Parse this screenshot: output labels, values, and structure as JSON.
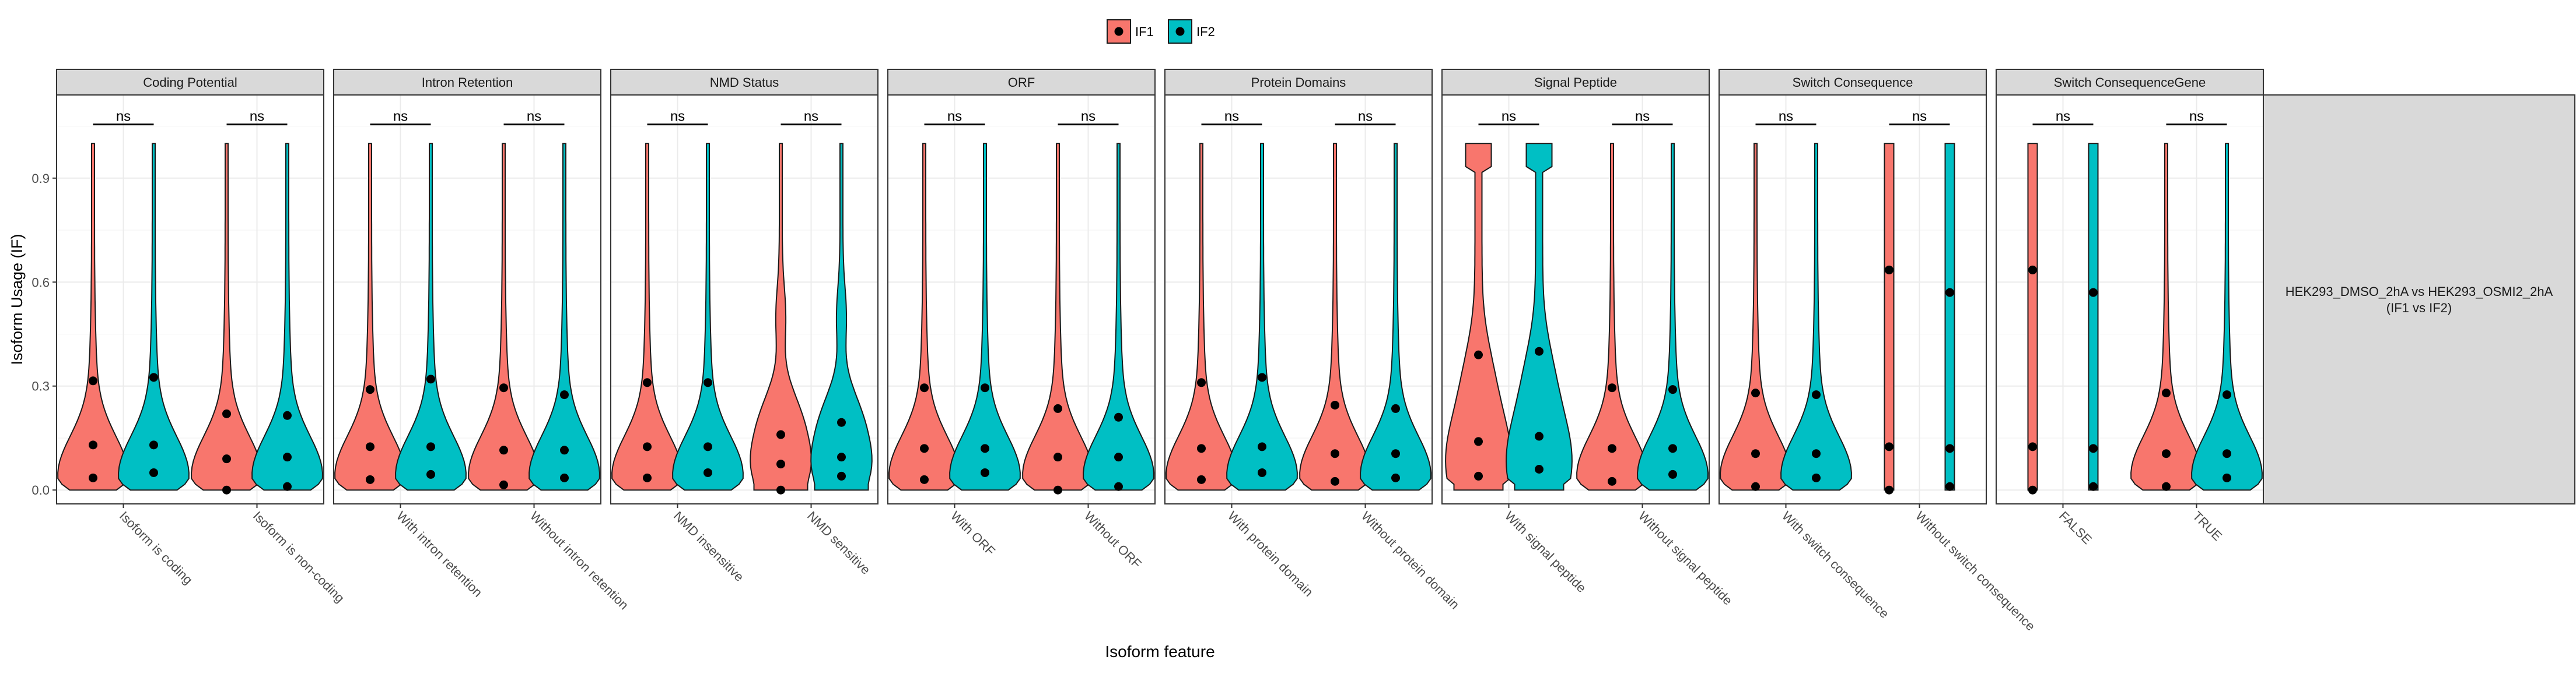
{
  "chart_data": {
    "type": "violin",
    "xlabel": "Isoform feature",
    "ylabel": "Isoform Usage (IF)",
    "ylim": [
      -0.04,
      1.14
    ],
    "yticks": [
      0.0,
      0.3,
      0.6,
      0.9
    ],
    "ytick_labels": [
      "0.0",
      "0.3",
      "0.6",
      "0.9"
    ],
    "grid": true,
    "legend": {
      "position": "top",
      "entries": [
        {
          "name": "IF1",
          "color": "#F8766D"
        },
        {
          "name": "IF2",
          "color": "#00BFC4"
        }
      ]
    },
    "strip_right": {
      "line1": "HEK293_DMSO_2hA vs HEK293_OSMI2_2hA",
      "line2": "(IF1 vs IF2)"
    },
    "significance_label": "ns",
    "facets": [
      {
        "title": "Coding Potential",
        "categories": [
          {
            "label": "Isoform is coding",
            "sig": "ns",
            "IF1": {
              "shape": "tail",
              "q": [
                0.035,
                0.13,
                0.315
              ]
            },
            "IF2": {
              "shape": "tail",
              "q": [
                0.05,
                0.13,
                0.325
              ]
            }
          },
          {
            "label": "Isoform is non-coding",
            "sig": "ns",
            "IF1": {
              "shape": "tail",
              "q": [
                0.0,
                0.09,
                0.22
              ]
            },
            "IF2": {
              "shape": "tail",
              "q": [
                0.01,
                0.095,
                0.215
              ]
            }
          }
        ]
      },
      {
        "title": "Intron Retention",
        "categories": [
          {
            "label": "With intron retention",
            "sig": "ns",
            "IF1": {
              "shape": "tail",
              "q": [
                0.03,
                0.125,
                0.29
              ]
            },
            "IF2": {
              "shape": "tail",
              "q": [
                0.045,
                0.125,
                0.32
              ]
            }
          },
          {
            "label": "Without intron retention",
            "sig": "ns",
            "IF1": {
              "shape": "tail",
              "q": [
                0.015,
                0.115,
                0.295
              ]
            },
            "IF2": {
              "shape": "tail",
              "q": [
                0.035,
                0.115,
                0.275
              ]
            }
          }
        ]
      },
      {
        "title": "NMD Status",
        "categories": [
          {
            "label": "NMD insensitive",
            "sig": "ns",
            "IF1": {
              "shape": "tail",
              "q": [
                0.035,
                0.125,
                0.31
              ]
            },
            "IF2": {
              "shape": "tail",
              "q": [
                0.05,
                0.125,
                0.31
              ]
            }
          },
          {
            "label": "NMD sensitive",
            "sig": "ns",
            "IF1": {
              "shape": "bulge",
              "q": [
                0.0,
                0.075,
                0.16
              ]
            },
            "IF2": {
              "shape": "bulge",
              "q": [
                0.04,
                0.095,
                0.195
              ]
            }
          }
        ]
      },
      {
        "title": "ORF",
        "categories": [
          {
            "label": "With ORF",
            "sig": "ns",
            "IF1": {
              "shape": "tail",
              "q": [
                0.03,
                0.12,
                0.295
              ]
            },
            "IF2": {
              "shape": "tail",
              "q": [
                0.05,
                0.12,
                0.295
              ]
            }
          },
          {
            "label": "Without ORF",
            "sig": "ns",
            "IF1": {
              "shape": "tail",
              "q": [
                0.0,
                0.095,
                0.235
              ]
            },
            "IF2": {
              "shape": "tail",
              "q": [
                0.01,
                0.095,
                0.21
              ]
            }
          }
        ]
      },
      {
        "title": "Protein Domains",
        "categories": [
          {
            "label": "With protein domain",
            "sig": "ns",
            "IF1": {
              "shape": "tail",
              "q": [
                0.03,
                0.12,
                0.31
              ]
            },
            "IF2": {
              "shape": "tail",
              "q": [
                0.05,
                0.125,
                0.325
              ]
            }
          },
          {
            "label": "Without protein domain",
            "sig": "ns",
            "IF1": {
              "shape": "tail",
              "q": [
                0.025,
                0.105,
                0.245
              ]
            },
            "IF2": {
              "shape": "tail",
              "q": [
                0.035,
                0.105,
                0.235
              ]
            }
          }
        ]
      },
      {
        "title": "Signal Peptide",
        "categories": [
          {
            "label": "With signal peptide",
            "sig": "ns",
            "IF1": {
              "shape": "wide",
              "q": [
                0.04,
                0.14,
                0.39
              ]
            },
            "IF2": {
              "shape": "wide",
              "q": [
                0.06,
                0.155,
                0.4
              ]
            }
          },
          {
            "label": "Without signal peptide",
            "sig": "ns",
            "IF1": {
              "shape": "tail",
              "q": [
                0.025,
                0.12,
                0.295
              ]
            },
            "IF2": {
              "shape": "tail",
              "q": [
                0.045,
                0.12,
                0.29
              ]
            }
          }
        ]
      },
      {
        "title": "Switch Consequence",
        "categories": [
          {
            "label": "With switch consequence",
            "sig": "ns",
            "IF1": {
              "shape": "tail",
              "q": [
                0.01,
                0.105,
                0.28
              ]
            },
            "IF2": {
              "shape": "tail",
              "q": [
                0.035,
                0.105,
                0.275
              ]
            }
          },
          {
            "label": "Without switch consequence",
            "sig": "ns",
            "IF1": {
              "shape": "bar",
              "q": [
                0.0,
                0.125,
                0.635
              ]
            },
            "IF2": {
              "shape": "bar",
              "q": [
                0.01,
                0.12,
                0.57
              ]
            }
          }
        ]
      },
      {
        "title": "Switch ConsequenceGene",
        "categories": [
          {
            "label": "FALSE",
            "sig": "ns",
            "IF1": {
              "shape": "bar",
              "q": [
                0.0,
                0.125,
                0.635
              ]
            },
            "IF2": {
              "shape": "bar",
              "q": [
                0.01,
                0.12,
                0.57
              ]
            }
          },
          {
            "label": "TRUE",
            "sig": "ns",
            "IF1": {
              "shape": "tail",
              "q": [
                0.01,
                0.105,
                0.28
              ]
            },
            "IF2": {
              "shape": "tail",
              "q": [
                0.035,
                0.105,
                0.275
              ]
            }
          }
        ]
      }
    ]
  }
}
